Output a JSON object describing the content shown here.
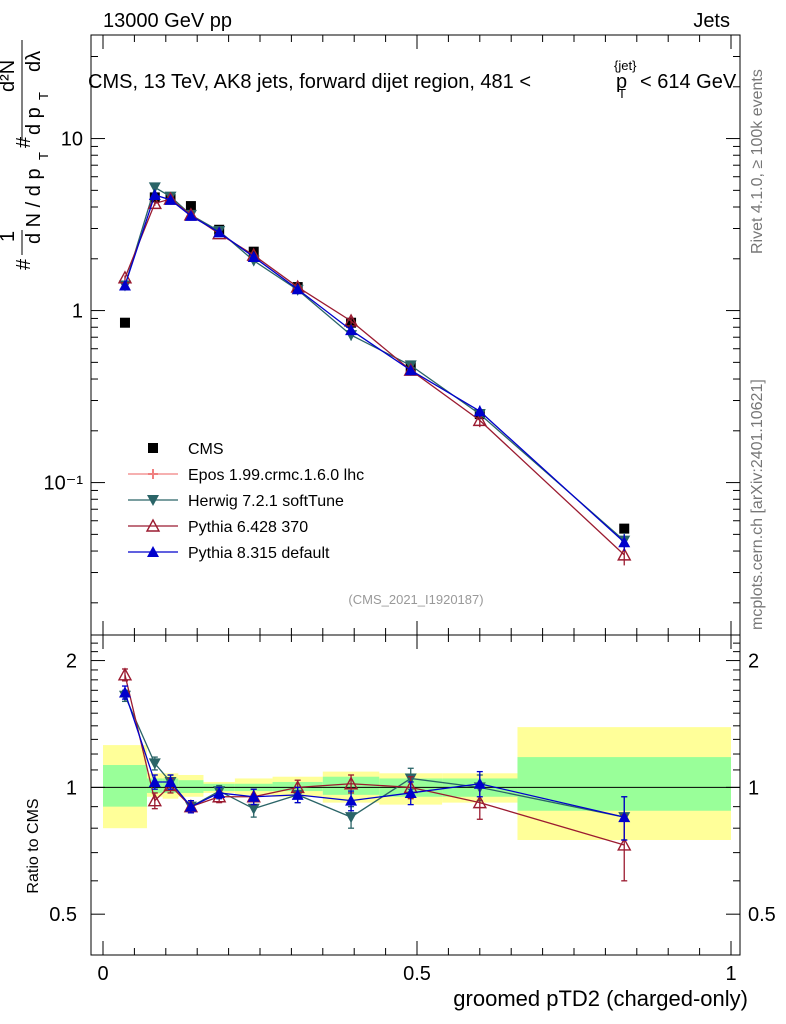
{
  "header": {
    "left": "13000 GeV pp",
    "right": "Jets",
    "side_rivet": "Rivet 4.1.0, ≥ 100k events",
    "side_mcplots": "mcplots.cern.ch [arXiv:2401.10621]",
    "analysis_id": "(CMS_2021_I1920187)"
  },
  "chart_data": {
    "type": "scatter",
    "title": "CMS, 13 TeV, AK8 jets, forward dijet region, 481 <",
    "title_pt_sym": "p",
    "title_pt_sub": "T",
    "title_pt_sup": "{jet}",
    "title_end": "< 614 GeV",
    "xlabel": "groomed pTD2 (charged-only)",
    "ylabel_top": "1 / dN/dp_T · d²N / dp_T dλ",
    "ylabel_ratio": "Ratio to CMS",
    "xlim": [
      0,
      1
    ],
    "ylim_main": [
      0.013,
      40
    ],
    "ylim_ratio": [
      0.4,
      2.3
    ],
    "x_ticks": [
      0,
      0.5,
      1
    ],
    "x_tick_labels": [
      "0",
      "0.5",
      "1"
    ],
    "y_main_ticks": [
      0.1,
      1,
      10
    ],
    "y_main_tick_labels": [
      "10⁻¹",
      "1",
      "10"
    ],
    "y_ratio_ticks": [
      0.5,
      1,
      2
    ],
    "y_ratio_tick_labels": [
      "0.5",
      "1",
      "2"
    ],
    "bins": [
      [
        0.0,
        0.07
      ],
      [
        0.07,
        0.095
      ],
      [
        0.095,
        0.12
      ],
      [
        0.12,
        0.16
      ],
      [
        0.16,
        0.21
      ],
      [
        0.21,
        0.27
      ],
      [
        0.27,
        0.35
      ],
      [
        0.35,
        0.44
      ],
      [
        0.44,
        0.54
      ],
      [
        0.54,
        0.66
      ],
      [
        0.66,
        1.0
      ]
    ],
    "x": [
      0.035,
      0.0825,
      0.1075,
      0.14,
      0.185,
      0.24,
      0.31,
      0.395,
      0.49,
      0.6,
      0.83
    ],
    "band_inner": [
      [
        0.9,
        1.13
      ],
      [
        0.97,
        1.05
      ],
      [
        0.97,
        1.05
      ],
      [
        0.97,
        1.04
      ],
      [
        0.98,
        1.02
      ],
      [
        0.98,
        1.02
      ],
      [
        0.98,
        1.03
      ],
      [
        0.96,
        1.06
      ],
      [
        0.95,
        1.05
      ],
      [
        0.95,
        1.05
      ],
      [
        0.88,
        1.18
      ]
    ],
    "band_outer": [
      [
        0.8,
        1.26
      ],
      [
        0.95,
        1.08
      ],
      [
        0.94,
        1.08
      ],
      [
        0.95,
        1.07
      ],
      [
        0.97,
        1.03
      ],
      [
        0.96,
        1.05
      ],
      [
        0.95,
        1.06
      ],
      [
        0.92,
        1.09
      ],
      [
        0.91,
        1.08
      ],
      [
        0.92,
        1.08
      ],
      [
        0.75,
        1.39
      ]
    ],
    "series": [
      {
        "name": "CMS",
        "color": "#000000",
        "marker": "square",
        "values": [
          0.85,
          4.55,
          4.45,
          4.05,
          2.95,
          2.2,
          1.37,
          0.85,
          0.47,
          0.25,
          0.054
        ],
        "errors": [
          0.02,
          0.1,
          0.1,
          0.08,
          0.05,
          0.04,
          0.03,
          0.02,
          0.01,
          0.01,
          0.002
        ]
      },
      {
        "name": "Epos 1.99.crmc.1.6.0 lhc",
        "color": "#f08080",
        "marker": "cross",
        "values": [
          null,
          null,
          null,
          null,
          null,
          null,
          null,
          null,
          null,
          null,
          null
        ],
        "ratio": [
          null,
          null,
          null,
          null,
          null,
          null,
          null,
          null,
          null,
          null,
          null
        ]
      },
      {
        "name": "Herwig 7.2.1 softTune",
        "color": "#2a6467",
        "marker": "triangle-down",
        "values": [
          1.4,
          5.2,
          4.6,
          3.6,
          2.9,
          1.95,
          1.32,
          0.72,
          0.48,
          0.25,
          0.046
        ],
        "errors": [
          0.05,
          0.15,
          0.12,
          0.1,
          0.08,
          0.06,
          0.05,
          0.05,
          0.03,
          0.02,
          0.005
        ],
        "ratio": [
          1.65,
          1.14,
          1.03,
          0.9,
          0.98,
          0.89,
          0.96,
          0.85,
          1.05,
          1.0,
          0.85
        ],
        "ratio_errors": [
          0.05,
          0.04,
          0.04,
          0.03,
          0.03,
          0.04,
          0.04,
          0.05,
          0.06,
          0.07,
          0.1
        ]
      },
      {
        "name": "Pythia 6.428 370",
        "color": "#9b1b30",
        "marker": "triangle-up-open",
        "values": [
          1.55,
          4.2,
          4.45,
          3.6,
          2.8,
          2.1,
          1.37,
          0.87,
          0.45,
          0.23,
          0.038
        ],
        "errors": [
          0.05,
          0.13,
          0.12,
          0.1,
          0.08,
          0.06,
          0.05,
          0.05,
          0.03,
          0.02,
          0.005
        ],
        "ratio": [
          1.85,
          0.93,
          1.01,
          0.9,
          0.95,
          0.95,
          1.0,
          1.02,
          1.0,
          0.92,
          0.73
        ],
        "ratio_errors": [
          0.06,
          0.04,
          0.04,
          0.03,
          0.03,
          0.04,
          0.04,
          0.05,
          0.06,
          0.08,
          0.13
        ]
      },
      {
        "name": "Pythia 8.315 default",
        "color": "#0000cc",
        "marker": "triangle-up",
        "values": [
          1.4,
          4.7,
          4.4,
          3.55,
          2.85,
          2.05,
          1.33,
          0.77,
          0.45,
          0.26,
          0.045
        ],
        "errors": [
          0.05,
          0.14,
          0.12,
          0.1,
          0.08,
          0.06,
          0.05,
          0.05,
          0.03,
          0.02,
          0.005
        ],
        "ratio": [
          1.68,
          1.03,
          1.03,
          0.9,
          0.97,
          0.95,
          0.96,
          0.93,
          0.97,
          1.02,
          0.85
        ],
        "ratio_errors": [
          0.06,
          0.04,
          0.04,
          0.03,
          0.03,
          0.04,
          0.04,
          0.05,
          0.06,
          0.07,
          0.1
        ]
      }
    ]
  }
}
